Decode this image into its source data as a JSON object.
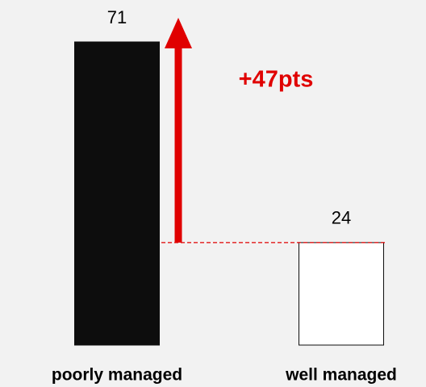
{
  "chart_data": {
    "type": "bar",
    "categories": [
      "poorly managed",
      "well managed"
    ],
    "values": [
      71,
      24
    ],
    "colors": [
      "#0d0d0d",
      "#ffffff"
    ],
    "annotation": "+47pts",
    "annotation_color": "#e00000"
  }
}
